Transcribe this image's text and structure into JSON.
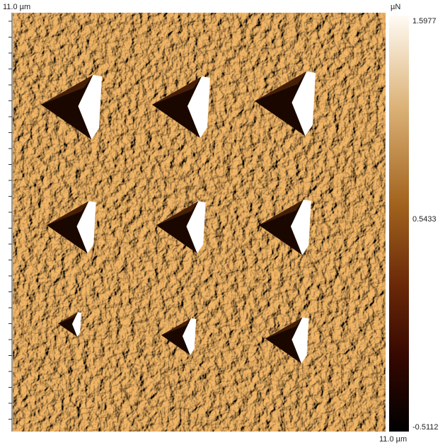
{
  "scan_size_top": "11.0 µm",
  "scan_size_bottom": "11.0 µm",
  "colorbar": {
    "unit": "µN",
    "max": "1.5977",
    "mid": "0.5433",
    "min": "-0.5112"
  }
}
